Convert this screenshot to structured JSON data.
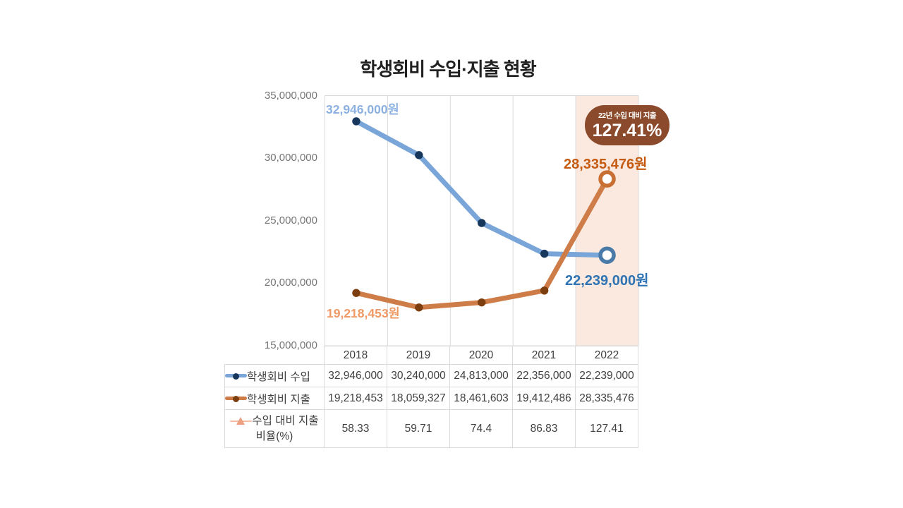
{
  "title": "학생회비 수입·지출 현황",
  "badge": {
    "caption": "22년 수입 대비 지출",
    "value": "127.41%"
  },
  "chart_data": {
    "type": "line",
    "title": "학생회비 수입·지출 현황",
    "categories": [
      "2018",
      "2019",
      "2020",
      "2021",
      "2022"
    ],
    "series": [
      {
        "name": "학생회비 수입",
        "values": [
          32946000,
          30240000,
          24813000,
          22356000,
          22239000
        ],
        "display": [
          "32,946,000",
          "30,240,000",
          "24,813,000",
          "22,356,000",
          "22,239,000"
        ],
        "plotted": true,
        "line_color": "#7AA5D8",
        "dot_color": "#16365C",
        "ring_color": "#4A7AA8",
        "marker": "circle"
      },
      {
        "name": "학생회비 지출",
        "values": [
          19218453,
          18059327,
          18461603,
          19412486,
          28335476
        ],
        "display": [
          "19,218,453",
          "18,059,327",
          "18,461,603",
          "19,412,486",
          "28,335,476"
        ],
        "plotted": true,
        "line_color": "#CE7C48",
        "dot_color": "#7C3E0F",
        "ring_color": "#C86F33",
        "marker": "circle"
      },
      {
        "name": "수입 대비 지출 비율(%)",
        "values": [
          58.33,
          59.71,
          74.4,
          86.83,
          127.41
        ],
        "display": [
          "58.33",
          "59.71",
          "74.4",
          "86.83",
          "127.41"
        ],
        "plotted": false,
        "line_color": "#F5BCA4",
        "dot_color": "#ED9F82",
        "marker": "triangle"
      }
    ],
    "ylim": [
      15000000,
      35000000
    ],
    "ytick_values": [
      35000000,
      30000000,
      25000000,
      20000000,
      15000000
    ],
    "ytick_labels": [
      "35,000,000",
      "30,000,000",
      "25,000,000",
      "20,000,000",
      "15,000,000"
    ],
    "grid": "vertical-only",
    "gridline_color": "#D9D9D9",
    "highlight_category": "2022",
    "highlight_color": "#FBE9DF",
    "legend_position": "table-left",
    "annotations": {
      "income_first": "32,946,000원",
      "expense_first": "19,218,453원",
      "expense_last": "28,335,476원",
      "income_last": "22,239,000원"
    }
  }
}
